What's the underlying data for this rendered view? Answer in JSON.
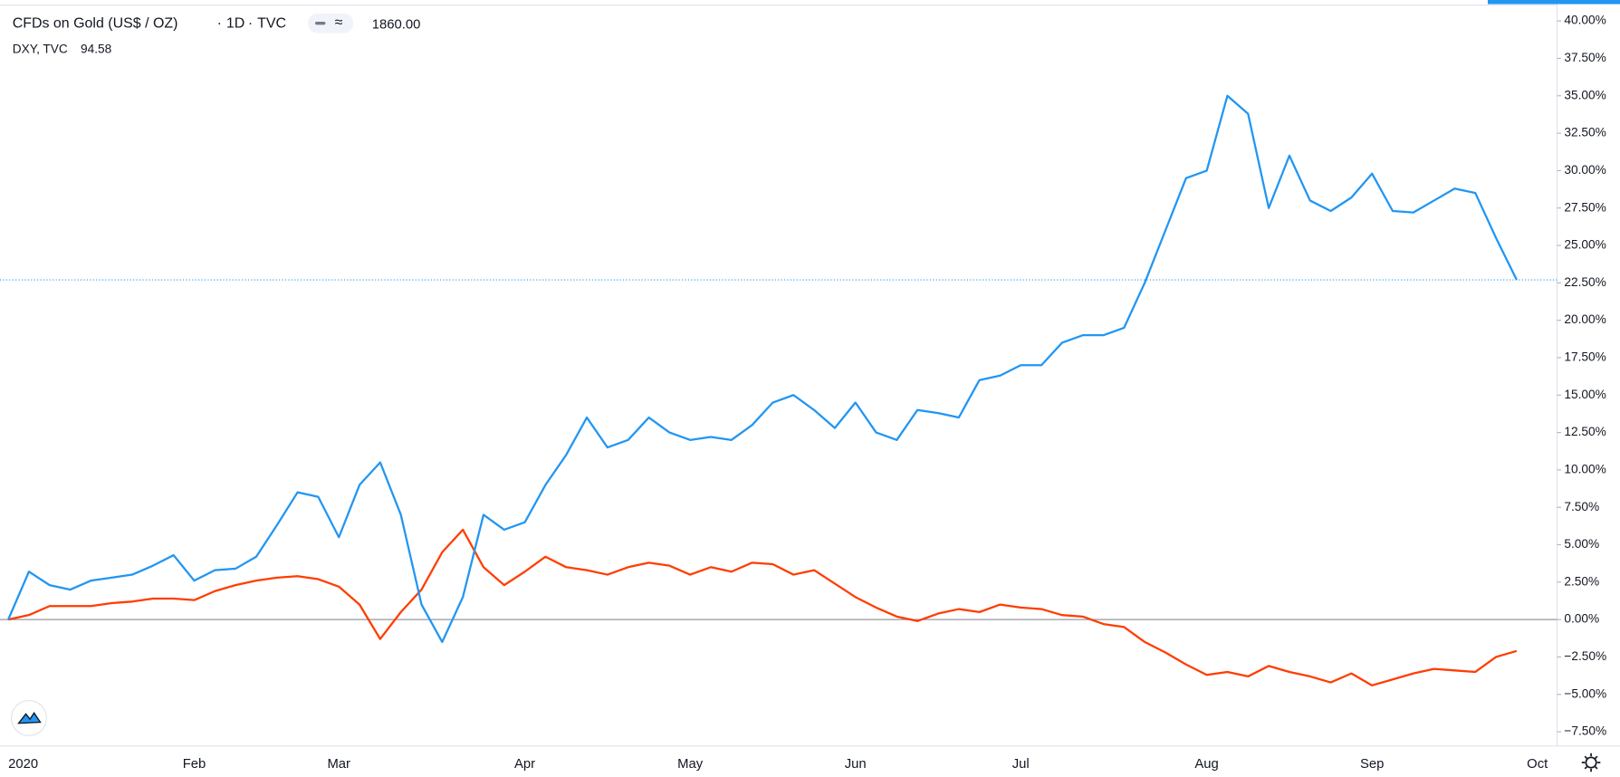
{
  "chart_data": {
    "type": "line",
    "symbol": "CFDs on Gold (US$ / OZ)",
    "interval": "1D",
    "exchange": "TVC",
    "categories": [
      "2020",
      null,
      null,
      null,
      null,
      null,
      null,
      null,
      null,
      "Feb",
      null,
      null,
      null,
      null,
      null,
      null,
      "Mar",
      null,
      null,
      null,
      null,
      null,
      null,
      null,
      null,
      "Apr",
      null,
      null,
      null,
      null,
      null,
      null,
      null,
      "May",
      null,
      null,
      null,
      null,
      null,
      null,
      null,
      "Jun",
      null,
      null,
      null,
      null,
      null,
      null,
      null,
      "Jul",
      null,
      null,
      null,
      null,
      null,
      null,
      null,
      null,
      "Aug",
      null,
      null,
      null,
      null,
      null,
      null,
      null,
      "Sep",
      null,
      null,
      null,
      null,
      null,
      null,
      null,
      "Oct"
    ],
    "series": [
      {
        "name": "CFDs on Gold (US$ / OZ)",
        "legend_value": "1860.00",
        "color": "#2196f3",
        "values": [
          0,
          3.2,
          2.3,
          2.0,
          2.6,
          2.8,
          3.0,
          3.6,
          4.3,
          2.6,
          3.3,
          3.4,
          4.2,
          6.3,
          8.5,
          8.2,
          5.5,
          9.0,
          10.5,
          7.0,
          1.0,
          -1.5,
          1.5,
          7.0,
          6.0,
          6.5,
          9.0,
          11.0,
          13.5,
          11.5,
          12.0,
          13.5,
          12.5,
          12.0,
          12.2,
          12.0,
          13.0,
          14.5,
          15.0,
          14.0,
          12.8,
          14.5,
          12.5,
          12.0,
          14.0,
          13.8,
          13.5,
          16.0,
          16.3,
          17.0,
          17.0,
          18.5,
          19.0,
          19.0,
          19.5,
          22.5,
          26.0,
          29.5,
          30.0,
          35.0,
          33.8,
          27.5,
          31.0,
          28.0,
          27.3,
          28.2,
          29.8,
          27.3,
          27.2,
          28.0,
          28.8,
          28.5,
          25.5,
          22.7,
          null
        ]
      },
      {
        "name": "DXY, TVC",
        "legend_value": "94.58",
        "color": "#ff3d00",
        "values": [
          0,
          0.3,
          0.9,
          0.9,
          0.9,
          1.1,
          1.2,
          1.4,
          1.4,
          1.3,
          1.9,
          2.3,
          2.6,
          2.8,
          2.9,
          2.7,
          2.2,
          1.0,
          -1.3,
          0.5,
          2.0,
          4.5,
          6.0,
          3.5,
          2.3,
          3.2,
          4.2,
          3.5,
          3.3,
          3.0,
          3.5,
          3.8,
          3.6,
          3.0,
          3.5,
          3.2,
          3.8,
          3.7,
          3.0,
          3.3,
          2.4,
          1.5,
          0.8,
          0.2,
          -0.1,
          0.4,
          0.7,
          0.5,
          1.0,
          0.8,
          0.7,
          0.3,
          0.2,
          -0.3,
          -0.5,
          -1.5,
          -2.2,
          -3.0,
          -3.7,
          -3.5,
          -3.8,
          -3.1,
          -3.5,
          -3.8,
          -4.2,
          -3.6,
          -4.4,
          -4.0,
          -3.6,
          -3.3,
          -3.4,
          -3.5,
          -2.5,
          -2.1,
          null
        ]
      }
    ],
    "ylim": [
      -8.45,
      41.4
    ],
    "yticks": [
      {
        "value": -7.5,
        "label": "−7.50%"
      },
      {
        "value": -5,
        "label": "−5.00%"
      },
      {
        "value": -2.5,
        "label": "−2.50%"
      },
      {
        "value": 0,
        "label": "0.00%"
      },
      {
        "value": 2.5,
        "label": "2.50%"
      },
      {
        "value": 5,
        "label": "5.00%"
      },
      {
        "value": 7.5,
        "label": "7.50%"
      },
      {
        "value": 10,
        "label": "10.00%"
      },
      {
        "value": 12.5,
        "label": "12.50%"
      },
      {
        "value": 15,
        "label": "15.00%"
      },
      {
        "value": 17.5,
        "label": "17.50%"
      },
      {
        "value": 20,
        "label": "20.00%"
      },
      {
        "value": 22.5,
        "label": "22.50%"
      },
      {
        "value": 25,
        "label": "25.00%"
      },
      {
        "value": 27.5,
        "label": "27.50%"
      },
      {
        "value": 30,
        "label": "30.00%"
      },
      {
        "value": 32.5,
        "label": "32.50%"
      },
      {
        "value": 35,
        "label": "35.00%"
      },
      {
        "value": 37.5,
        "label": "37.50%"
      },
      {
        "value": 40,
        "label": "40.00%"
      }
    ],
    "grid": false,
    "zero_line": true
  }
}
